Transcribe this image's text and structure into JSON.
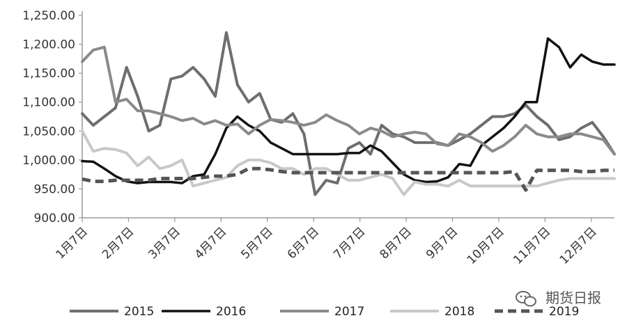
{
  "watermark": {
    "text": "期货日报",
    "icon": "wechat-icon"
  },
  "chart_data": {
    "type": "line",
    "title": "",
    "xlabel": "",
    "ylabel": "",
    "ylim": [
      900,
      1250
    ],
    "yticks": [
      "900.00",
      "950.00",
      "1,000.00",
      "1,050.00",
      "1,100.00",
      "1,150.00",
      "1,200.00",
      "1,250.00"
    ],
    "ytick_values": [
      900,
      950,
      1000,
      1050,
      1100,
      1150,
      1200,
      1250
    ],
    "xticks": [
      "1月7日",
      "2月7日",
      "3月7日",
      "4月7日",
      "5月7日",
      "6月7日",
      "7月7日",
      "8月7日",
      "9月7日",
      "10月7日",
      "11月7日",
      "12月7日"
    ],
    "xtick_weeks": [
      0,
      4,
      8,
      12,
      16,
      20,
      24,
      28,
      32,
      36,
      40,
      44
    ],
    "x_weeks_total": 46,
    "grid": false,
    "legend_position": "bottom",
    "series": [
      {
        "name": "2015",
        "color": "#6e6e6e",
        "width": 4,
        "dash": "",
        "values": [
          1080,
          1060,
          1075,
          1090,
          1160,
          1110,
          1050,
          1060,
          1140,
          1145,
          1160,
          1140,
          1110,
          1220,
          1130,
          1100,
          1115,
          1070,
          1065,
          1080,
          1045,
          940,
          965,
          960,
          1020,
          1030,
          1010,
          1060,
          1045,
          1040,
          1030,
          1030,
          1030,
          1025,
          1035,
          1045,
          1060,
          1075,
          1075,
          1080,
          1095,
          1075,
          1060,
          1035,
          1040,
          1055,
          1065,
          1040,
          1010
        ]
      },
      {
        "name": "2016",
        "color": "#111111",
        "width": 3.5,
        "dash": "",
        "values": [
          998,
          997,
          985,
          972,
          963,
          960,
          962,
          962,
          962,
          960,
          972,
          975,
          1010,
          1055,
          1075,
          1060,
          1050,
          1030,
          1020,
          1010,
          1010,
          1010,
          1010,
          1010,
          1012,
          1012,
          1025,
          1015,
          995,
          975,
          965,
          962,
          963,
          970,
          993,
          990,
          1025,
          1040,
          1055,
          1075,
          1100,
          1100,
          1210,
          1195,
          1160,
          1182,
          1170,
          1165,
          1165
        ]
      },
      {
        "name": "2017",
        "color": "#8a8a8a",
        "width": 4,
        "dash": "",
        "values": [
          1170,
          1190,
          1195,
          1100,
          1105,
          1085,
          1085,
          1080,
          1075,
          1068,
          1072,
          1062,
          1068,
          1060,
          1062,
          1045,
          1060,
          1070,
          1068,
          1065,
          1060,
          1065,
          1078,
          1068,
          1060,
          1045,
          1055,
          1050,
          1040,
          1045,
          1048,
          1045,
          1028,
          1025,
          1045,
          1040,
          1030,
          1015,
          1025,
          1040,
          1060,
          1045,
          1040,
          1040,
          1045,
          1045,
          1040,
          1035,
          1010
        ]
      },
      {
        "name": "2018",
        "color": "#c8c8c8",
        "width": 4,
        "dash": "",
        "values": [
          1050,
          1015,
          1020,
          1018,
          1012,
          990,
          1005,
          985,
          990,
          1000,
          955,
          960,
          965,
          970,
          990,
          1000,
          1000,
          995,
          985,
          985,
          975,
          985,
          985,
          975,
          965,
          965,
          970,
          975,
          968,
          940,
          962,
          958,
          958,
          955,
          965,
          955,
          955,
          955,
          955,
          955,
          955,
          955,
          960,
          965,
          968,
          968,
          968,
          968,
          968
        ]
      },
      {
        "name": "2019",
        "color": "#555555",
        "width": 5,
        "dash": "12,7",
        "values": [
          967,
          963,
          963,
          965,
          965,
          965,
          965,
          968,
          968,
          968,
          968,
          970,
          972,
          972,
          975,
          985,
          985,
          983,
          980,
          978,
          978,
          978,
          978,
          978,
          978,
          978,
          978,
          978,
          978,
          978,
          978,
          978,
          978,
          978,
          978,
          978,
          978,
          978,
          978,
          980,
          948,
          982,
          982,
          982,
          982,
          980,
          980,
          982,
          982
        ]
      }
    ]
  }
}
